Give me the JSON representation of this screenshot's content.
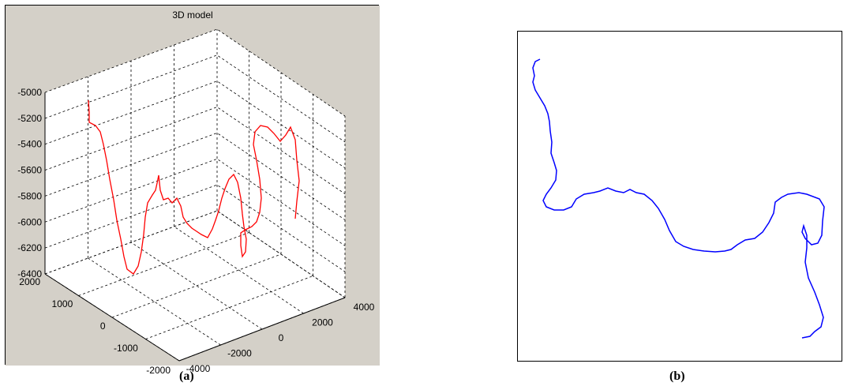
{
  "chart_data": [
    {
      "type": "line3d",
      "title": "3D model",
      "zlim": [
        -6400,
        -5000
      ],
      "z_ticks": [
        "-5000",
        "-5200",
        "-5400",
        "-5600",
        "-5800",
        "-6000",
        "-6200",
        "-6400"
      ],
      "y_ticks": [
        "2000",
        "1000",
        "0",
        "-1000",
        "-2000"
      ],
      "x_ticks": [
        "-4000",
        "-2000",
        "0",
        "2000",
        "4000"
      ],
      "grid": true,
      "series": [
        {
          "color": "#ff0000"
        }
      ],
      "caption": "(a)"
    },
    {
      "type": "line",
      "series": [
        {
          "color": "#0000ff"
        }
      ],
      "caption": "(b)"
    }
  ]
}
